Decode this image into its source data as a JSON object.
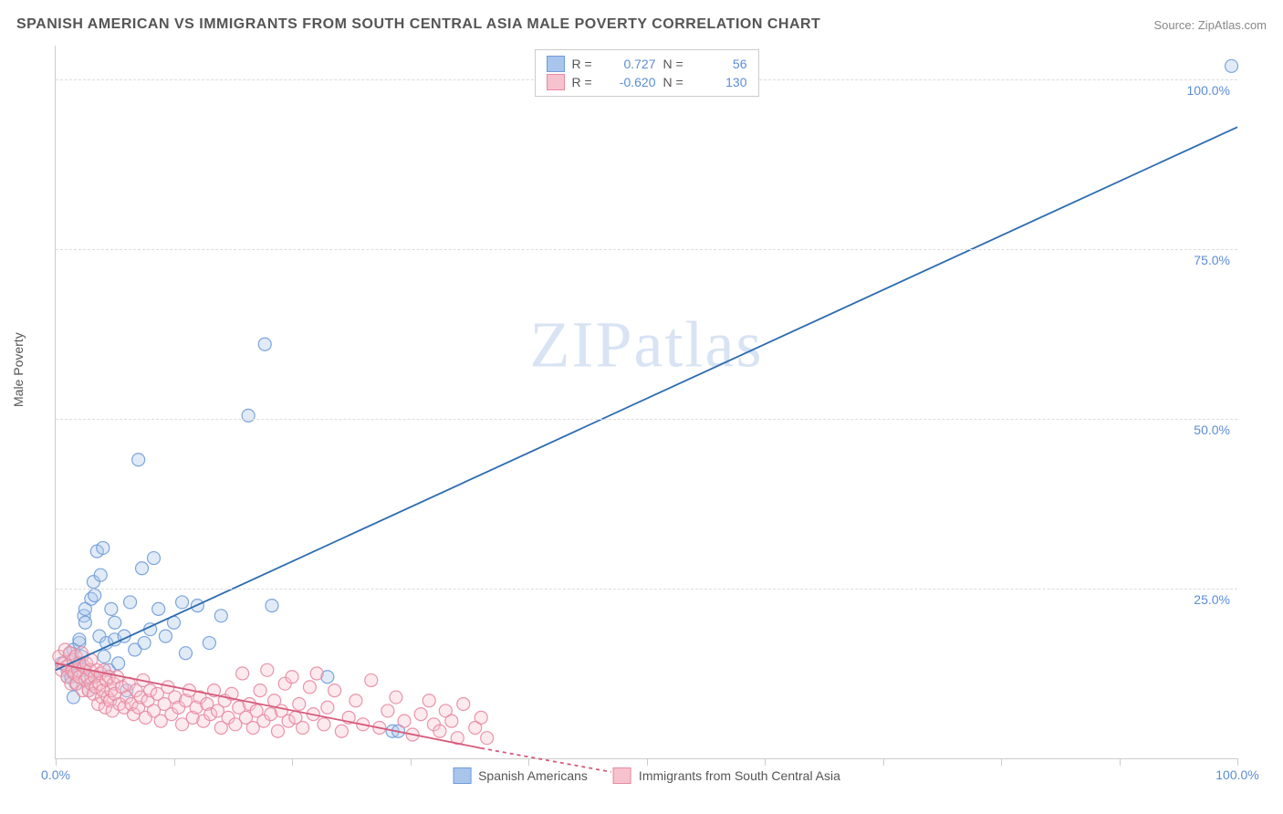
{
  "title": "SPANISH AMERICAN VS IMMIGRANTS FROM SOUTH CENTRAL ASIA MALE POVERTY CORRELATION CHART",
  "source": "Source: ZipAtlas.com",
  "y_axis_label": "Male Poverty",
  "watermark": "ZIPatlas",
  "chart": {
    "type": "scatter",
    "xlim": [
      0,
      100
    ],
    "ylim": [
      0,
      105
    ],
    "y_ticks": [
      25,
      50,
      75,
      100
    ],
    "y_tick_labels": [
      "25.0%",
      "50.0%",
      "75.0%",
      "100.0%"
    ],
    "x_ticks": [
      0,
      10,
      20,
      30,
      40,
      50,
      60,
      70,
      80,
      90,
      100
    ],
    "x_tick_labels_visible": {
      "0": "0.0%",
      "100": "100.0%"
    },
    "background_color": "#ffffff",
    "grid_color": "#dddddd",
    "axis_color": "#cccccc",
    "tick_label_color": "#5b8dd6",
    "label_fontsize": 14,
    "title_fontsize": 16,
    "marker_radius": 7,
    "marker_fill_opacity": 0.35,
    "marker_stroke_opacity": 0.9,
    "marker_stroke_width": 1.2,
    "line_width": 1.8
  },
  "series": [
    {
      "name": "Spanish Americans",
      "color_fill": "#a9c5ec",
      "color_stroke": "#6f9cd8",
      "line_color": "#2b6cb0",
      "R": "0.727",
      "N": "56",
      "trend": {
        "x1": 0,
        "y1": 13,
        "x2": 100,
        "y2": 93,
        "dash": null
      },
      "points": [
        [
          0.5,
          14
        ],
        [
          1,
          13
        ],
        [
          1,
          12
        ],
        [
          1.2,
          15.5
        ],
        [
          1.3,
          12
        ],
        [
          1.5,
          9
        ],
        [
          1.5,
          16
        ],
        [
          1.7,
          11
        ],
        [
          1.8,
          14
        ],
        [
          2,
          17
        ],
        [
          2,
          17.5
        ],
        [
          2.2,
          15
        ],
        [
          2.3,
          13
        ],
        [
          2.4,
          21
        ],
        [
          2.5,
          20
        ],
        [
          2.5,
          22
        ],
        [
          2.8,
          10
        ],
        [
          3,
          23.5
        ],
        [
          3,
          12
        ],
        [
          3.2,
          26
        ],
        [
          3.3,
          24
        ],
        [
          3.5,
          30.5
        ],
        [
          3.7,
          18
        ],
        [
          3.8,
          27
        ],
        [
          4,
          31
        ],
        [
          4.1,
          15
        ],
        [
          4.3,
          17
        ],
        [
          4.5,
          13
        ],
        [
          4.7,
          22
        ],
        [
          5,
          20
        ],
        [
          5,
          17.5
        ],
        [
          5.3,
          14
        ],
        [
          5.8,
          18
        ],
        [
          6,
          10
        ],
        [
          6.3,
          23
        ],
        [
          6.7,
          16
        ],
        [
          7,
          44
        ],
        [
          7.3,
          28
        ],
        [
          7.5,
          17
        ],
        [
          8,
          19
        ],
        [
          8.3,
          29.5
        ],
        [
          8.7,
          22
        ],
        [
          9.3,
          18
        ],
        [
          10,
          20
        ],
        [
          10.7,
          23
        ],
        [
          11,
          15.5
        ],
        [
          12,
          22.5
        ],
        [
          13,
          17
        ],
        [
          14,
          21
        ],
        [
          16.3,
          50.5
        ],
        [
          17.7,
          61
        ],
        [
          18.3,
          22.5
        ],
        [
          23,
          12
        ],
        [
          28.5,
          4
        ],
        [
          29,
          4
        ],
        [
          99.5,
          102
        ]
      ]
    },
    {
      "name": "Immigrants from South Central Asia",
      "color_fill": "#f6c2cd",
      "color_stroke": "#e78aa1",
      "line_color": "#d65a7a",
      "R": "-0.620",
      "N": "130",
      "trend": {
        "x1": 0,
        "y1": 14,
        "x2": 36,
        "y2": 1.5,
        "dash": null
      },
      "trend_ext": {
        "x1": 36,
        "y1": 1.5,
        "x2": 47,
        "y2": -2,
        "dash": "4,4"
      },
      "points": [
        [
          0.3,
          15
        ],
        [
          0.5,
          13
        ],
        [
          0.7,
          14
        ],
        [
          0.8,
          16
        ],
        [
          1,
          13.5
        ],
        [
          1,
          12
        ],
        [
          1.2,
          15.5
        ],
        [
          1.3,
          11
        ],
        [
          1.4,
          13
        ],
        [
          1.5,
          14.5
        ],
        [
          1.6,
          12.5
        ],
        [
          1.7,
          15
        ],
        [
          1.8,
          11
        ],
        [
          1.9,
          13
        ],
        [
          2,
          14
        ],
        [
          2,
          12
        ],
        [
          2.2,
          15.5
        ],
        [
          2.3,
          10
        ],
        [
          2.4,
          13.5
        ],
        [
          2.5,
          11.5
        ],
        [
          2.6,
          14
        ],
        [
          2.7,
          12
        ],
        [
          2.8,
          10
        ],
        [
          2.9,
          13
        ],
        [
          3,
          11
        ],
        [
          3,
          14.5
        ],
        [
          3.2,
          9.5
        ],
        [
          3.3,
          12
        ],
        [
          3.4,
          10.5
        ],
        [
          3.5,
          13
        ],
        [
          3.6,
          8
        ],
        [
          3.7,
          11
        ],
        [
          3.8,
          12.5
        ],
        [
          3.9,
          9
        ],
        [
          4,
          10
        ],
        [
          4.1,
          13
        ],
        [
          4.2,
          7.5
        ],
        [
          4.3,
          11.5
        ],
        [
          4.4,
          9
        ],
        [
          4.5,
          12
        ],
        [
          4.6,
          8.5
        ],
        [
          4.7,
          10
        ],
        [
          4.8,
          7
        ],
        [
          4.9,
          11
        ],
        [
          5,
          9.5
        ],
        [
          5.2,
          12
        ],
        [
          5.4,
          8
        ],
        [
          5.6,
          10.5
        ],
        [
          5.8,
          7.5
        ],
        [
          6,
          9
        ],
        [
          6.2,
          11
        ],
        [
          6.4,
          8
        ],
        [
          6.6,
          6.5
        ],
        [
          6.8,
          10
        ],
        [
          7,
          7.5
        ],
        [
          7.2,
          9
        ],
        [
          7.4,
          11.5
        ],
        [
          7.6,
          6
        ],
        [
          7.8,
          8.5
        ],
        [
          8,
          10
        ],
        [
          8.3,
          7
        ],
        [
          8.6,
          9.5
        ],
        [
          8.9,
          5.5
        ],
        [
          9.2,
          8
        ],
        [
          9.5,
          10.5
        ],
        [
          9.8,
          6.5
        ],
        [
          10.1,
          9
        ],
        [
          10.4,
          7.5
        ],
        [
          10.7,
          5
        ],
        [
          11,
          8.5
        ],
        [
          11.3,
          10
        ],
        [
          11.6,
          6
        ],
        [
          11.9,
          7.5
        ],
        [
          12.2,
          9
        ],
        [
          12.5,
          5.5
        ],
        [
          12.8,
          8
        ],
        [
          13.1,
          6.5
        ],
        [
          13.4,
          10
        ],
        [
          13.7,
          7
        ],
        [
          14,
          4.5
        ],
        [
          14.3,
          8.5
        ],
        [
          14.6,
          6
        ],
        [
          14.9,
          9.5
        ],
        [
          15.2,
          5
        ],
        [
          15.5,
          7.5
        ],
        [
          15.8,
          12.5
        ],
        [
          16.1,
          6
        ],
        [
          16.4,
          8
        ],
        [
          16.7,
          4.5
        ],
        [
          17,
          7
        ],
        [
          17.3,
          10
        ],
        [
          17.6,
          5.5
        ],
        [
          17.9,
          13
        ],
        [
          18.2,
          6.5
        ],
        [
          18.5,
          8.5
        ],
        [
          18.8,
          4
        ],
        [
          19.1,
          7
        ],
        [
          19.4,
          11
        ],
        [
          19.7,
          5.5
        ],
        [
          20,
          12
        ],
        [
          20.3,
          6
        ],
        [
          20.6,
          8
        ],
        [
          20.9,
          4.5
        ],
        [
          21.5,
          10.5
        ],
        [
          21.8,
          6.5
        ],
        [
          22.1,
          12.5
        ],
        [
          22.7,
          5
        ],
        [
          23,
          7.5
        ],
        [
          23.6,
          10
        ],
        [
          24.2,
          4
        ],
        [
          24.8,
          6
        ],
        [
          25.4,
          8.5
        ],
        [
          26,
          5
        ],
        [
          26.7,
          11.5
        ],
        [
          27.4,
          4.5
        ],
        [
          28.1,
          7
        ],
        [
          28.8,
          9
        ],
        [
          29.5,
          5.5
        ],
        [
          30.2,
          3.5
        ],
        [
          30.9,
          6.5
        ],
        [
          31.6,
          8.5
        ],
        [
          32,
          5
        ],
        [
          32.5,
          4
        ],
        [
          33,
          7
        ],
        [
          33.5,
          5.5
        ],
        [
          34,
          3
        ],
        [
          34.5,
          8
        ],
        [
          35.5,
          4.5
        ],
        [
          36,
          6
        ],
        [
          36.5,
          3
        ]
      ]
    }
  ],
  "legend_top": {
    "R_label": "R =",
    "N_label": "N ="
  },
  "legend_bottom": {
    "items": [
      "Spanish Americans",
      "Immigrants from South Central Asia"
    ]
  }
}
